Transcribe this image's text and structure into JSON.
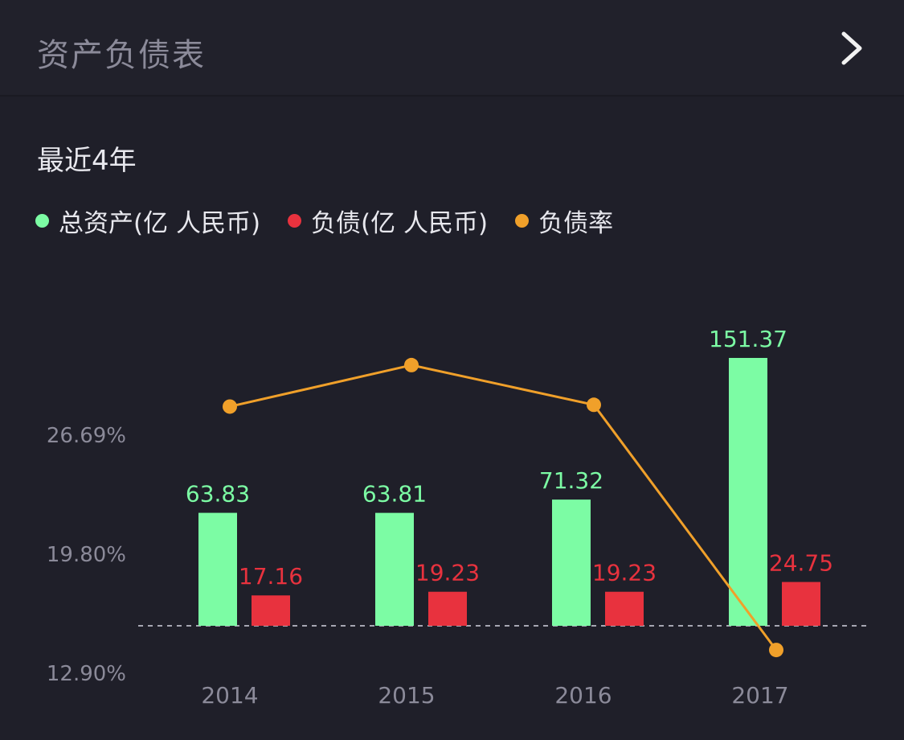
{
  "header": {
    "title": "资产负债表",
    "nav_icon": "chevron-right-icon"
  },
  "subtitle": "最近4年",
  "colors": {
    "total_assets": "#7cfca4",
    "liabilities": "#e8323e",
    "debt_ratio": "#f0a02a",
    "axis_text": "#8b8a99",
    "header_text": "#8b8a99",
    "background": "#1f1f29"
  },
  "legend": [
    {
      "label": "总资产(亿 人民币)",
      "color": "#7cfca4"
    },
    {
      "label": "负债(亿 人民币)",
      "color": "#e8323e"
    },
    {
      "label": "负债率",
      "color": "#f0a02a"
    }
  ],
  "chart_data": {
    "type": "bar",
    "categories": [
      "2014",
      "2015",
      "2016",
      "2017"
    ],
    "series": [
      {
        "name": "总资产(亿 人民币)",
        "type": "bar",
        "values": [
          63.83,
          63.81,
          71.32,
          151.37
        ],
        "labels": [
          "63.83",
          "63.81",
          "71.32",
          "151.37"
        ]
      },
      {
        "name": "负债(亿 人民币)",
        "type": "bar",
        "values": [
          17.16,
          19.23,
          19.23,
          24.75
        ],
        "labels": [
          "17.16",
          "19.23",
          "19.23",
          "24.75"
        ]
      },
      {
        "name": "负债率",
        "type": "line",
        "values": [
          28.3,
          30.7,
          28.4,
          14.2
        ],
        "unit": "%"
      }
    ],
    "ratio_axis": {
      "ticks": [
        "26.69%",
        "19.80%",
        "12.90%"
      ],
      "tick_values": [
        26.69,
        19.8,
        12.9
      ]
    },
    "legend_position": "top-left",
    "grid": false
  }
}
